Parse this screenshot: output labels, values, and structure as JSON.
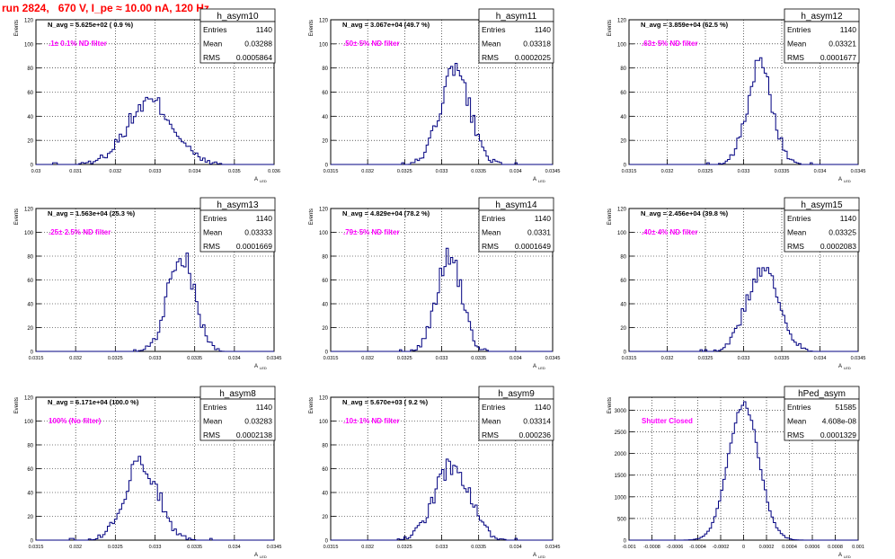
{
  "page_title": "run 2824,   670 V, I_pe ≈ 10.00 nA, 120 Hz",
  "ylabel": "Events",
  "xlabel": "A",
  "xlabel_sub": "LED",
  "colors": {
    "title": "#ff0000",
    "note": "#ff00ff",
    "hist": "#000080",
    "grid": "#000000"
  },
  "chart_data": [
    {
      "type": "histogram",
      "title": "h_asym10",
      "navg": "N_avg = 5.625e+02 ( 0.9 %)",
      "note": ".1± 0.1% ND filter",
      "stats": {
        "entries_label": "Entries",
        "entries": "1140",
        "mean_label": "Mean",
        "mean": "0.03288",
        "rms_label": "RMS",
        "rms": "0.0005864"
      },
      "xlim": [
        0.03,
        0.036
      ],
      "ylim": [
        0,
        120
      ],
      "xticks": [
        "0.03",
        "0.031",
        "0.032",
        "0.033",
        "0.034",
        "0.035",
        "0.036"
      ],
      "yticks": [
        "0",
        "20",
        "40",
        "60",
        "80",
        "100",
        "120"
      ],
      "mean": 0.03288,
      "sigma": 0.0005864,
      "peak": 52,
      "entries": 1140
    },
    {
      "type": "histogram",
      "title": "h_asym11",
      "navg": "N_avg = 3.067e+04 (49.7 %)",
      "note": ".50± 5% ND filter",
      "stats": {
        "entries_label": "Entries",
        "entries": "1140",
        "mean_label": "Mean",
        "mean": "0.03318",
        "rms_label": "RMS",
        "rms": "0.0002025"
      },
      "xlim": [
        0.0315,
        0.0345
      ],
      "ylim": [
        0,
        120
      ],
      "xticks": [
        "0.0315",
        "0.032",
        "0.0325",
        "0.033",
        "0.0335",
        "0.034",
        "0.0345"
      ],
      "yticks": [
        "0",
        "20",
        "40",
        "60",
        "80",
        "100",
        "120"
      ],
      "mean": 0.03318,
      "sigma": 0.0002025,
      "peak": 77,
      "entries": 1140
    },
    {
      "type": "histogram",
      "title": "h_asym12",
      "navg": "N_avg = 3.859e+04 (62.5 %)",
      "note": ".63± 5% ND filter",
      "stats": {
        "entries_label": "Entries",
        "entries": "1140",
        "mean_label": "Mean",
        "mean": "0.03321",
        "rms_label": "RMS",
        "rms": "0.0001677"
      },
      "xlim": [
        0.0315,
        0.0345
      ],
      "ylim": [
        0,
        120
      ],
      "xticks": [
        "0.0315",
        "0.032",
        "0.0325",
        "0.033",
        "0.0335",
        "0.034",
        "0.0345"
      ],
      "yticks": [
        "0",
        "20",
        "40",
        "60",
        "80",
        "100",
        "120"
      ],
      "mean": 0.03321,
      "sigma": 0.0001677,
      "peak": 80,
      "entries": 1140
    },
    {
      "type": "histogram",
      "title": "h_asym13",
      "navg": "N_avg = 1.563e+04 (25.3 %)",
      "note": ".25± 2.5% ND filter",
      "stats": {
        "entries_label": "Entries",
        "entries": "1140",
        "mean_label": "Mean",
        "mean": "0.03333",
        "rms_label": "RMS",
        "rms": "0.0001669"
      },
      "xlim": [
        0.0315,
        0.0345
      ],
      "ylim": [
        0,
        120
      ],
      "xticks": [
        "0.0315",
        "0.032",
        "0.0325",
        "0.033",
        "0.0335",
        "0.034",
        "0.0345"
      ],
      "yticks": [
        "0",
        "20",
        "40",
        "60",
        "80",
        "100",
        "120"
      ],
      "mean": 0.03333,
      "sigma": 0.0001669,
      "peak": 82,
      "entries": 1140
    },
    {
      "type": "histogram",
      "title": "h_asym14",
      "navg": "N_avg = 4.829e+04 (78.2 %)",
      "note": ".79± 5% ND filter",
      "stats": {
        "entries_label": "Entries",
        "entries": "1140",
        "mean_label": "Mean",
        "mean": "0.0331",
        "rms_label": "RMS",
        "rms": "0.0001649"
      },
      "xlim": [
        0.0315,
        0.0345
      ],
      "ylim": [
        0,
        120
      ],
      "xticks": [
        "0.0315",
        "0.032",
        "0.0325",
        "0.033",
        "0.0335",
        "0.034",
        "0.0345"
      ],
      "yticks": [
        "0",
        "20",
        "40",
        "60",
        "80",
        "100",
        "120"
      ],
      "mean": 0.0331,
      "sigma": 0.0001649,
      "peak": 82,
      "entries": 1140
    },
    {
      "type": "histogram",
      "title": "h_asym15",
      "navg": "N_avg = 2.456e+04 (39.8 %)",
      "note": ".40± 4% ND filter",
      "stats": {
        "entries_label": "Entries",
        "entries": "1140",
        "mean_label": "Mean",
        "mean": "0.03325",
        "rms_label": "RMS",
        "rms": "0.0002083"
      },
      "xlim": [
        0.0315,
        0.0345
      ],
      "ylim": [
        0,
        120
      ],
      "xticks": [
        "0.0315",
        "0.032",
        "0.0325",
        "0.033",
        "0.0335",
        "0.034",
        "0.0345"
      ],
      "yticks": [
        "0",
        "20",
        "40",
        "60",
        "80",
        "100",
        "120"
      ],
      "mean": 0.03325,
      "sigma": 0.0002083,
      "peak": 70,
      "entries": 1140
    },
    {
      "type": "histogram",
      "title": "h_asym8",
      "navg": "N_avg = 6.171e+04 (100.0 %)",
      "note": "100% (No filter)",
      "stats": {
        "entries_label": "Entries",
        "entries": "1140",
        "mean_label": "Mean",
        "mean": "0.03283",
        "rms_label": "RMS",
        "rms": "0.0002138"
      },
      "xlim": [
        0.0315,
        0.0345
      ],
      "ylim": [
        0,
        120
      ],
      "xticks": [
        "0.0315",
        "0.032",
        "0.0325",
        "0.033",
        "0.0335",
        "0.034",
        "0.0345"
      ],
      "yticks": [
        "0",
        "20",
        "40",
        "60",
        "80",
        "100",
        "120"
      ],
      "mean": 0.03283,
      "sigma": 0.0002138,
      "peak": 65,
      "entries": 1140
    },
    {
      "type": "histogram",
      "title": "h_asym9",
      "navg": "N_avg = 5.670e+03 ( 9.2 %)",
      "note": ".10± 1% ND filter",
      "stats": {
        "entries_label": "Entries",
        "entries": "1140",
        "mean_label": "Mean",
        "mean": "0.03314",
        "rms_label": "RMS",
        "rms": "0.000236"
      },
      "xlim": [
        0.0315,
        0.0345
      ],
      "ylim": [
        0,
        120
      ],
      "xticks": [
        "0.0315",
        "0.032",
        "0.0325",
        "0.033",
        "0.0335",
        "0.034",
        "0.0345"
      ],
      "yticks": [
        "0",
        "20",
        "40",
        "60",
        "80",
        "100",
        "120"
      ],
      "mean": 0.03314,
      "sigma": 0.000236,
      "peak": 63,
      "entries": 1140
    },
    {
      "type": "histogram",
      "title": "hPed_asym",
      "navg": "",
      "note": "Shutter Closed",
      "stats": {
        "entries_label": "Entries",
        "entries": "51585",
        "mean_label": "Mean",
        "mean": "4.608e-08",
        "rms_label": "RMS",
        "rms": "0.0001329"
      },
      "xlim": [
        -0.001,
        0.001
      ],
      "ylim": [
        0,
        3300
      ],
      "xticks": [
        "-0.001",
        "-0.0008",
        "-0.0006",
        "-0.0004",
        "-0.0002",
        "0",
        "0.0002",
        "0.0004",
        "0.0006",
        "0.0008",
        "0.001"
      ],
      "yticks": [
        "0",
        "500",
        "1000",
        "1500",
        "2000",
        "2500",
        "3000"
      ],
      "mean": 0.0,
      "sigma": 0.0001329,
      "peak": 3150,
      "entries": 51585
    }
  ]
}
